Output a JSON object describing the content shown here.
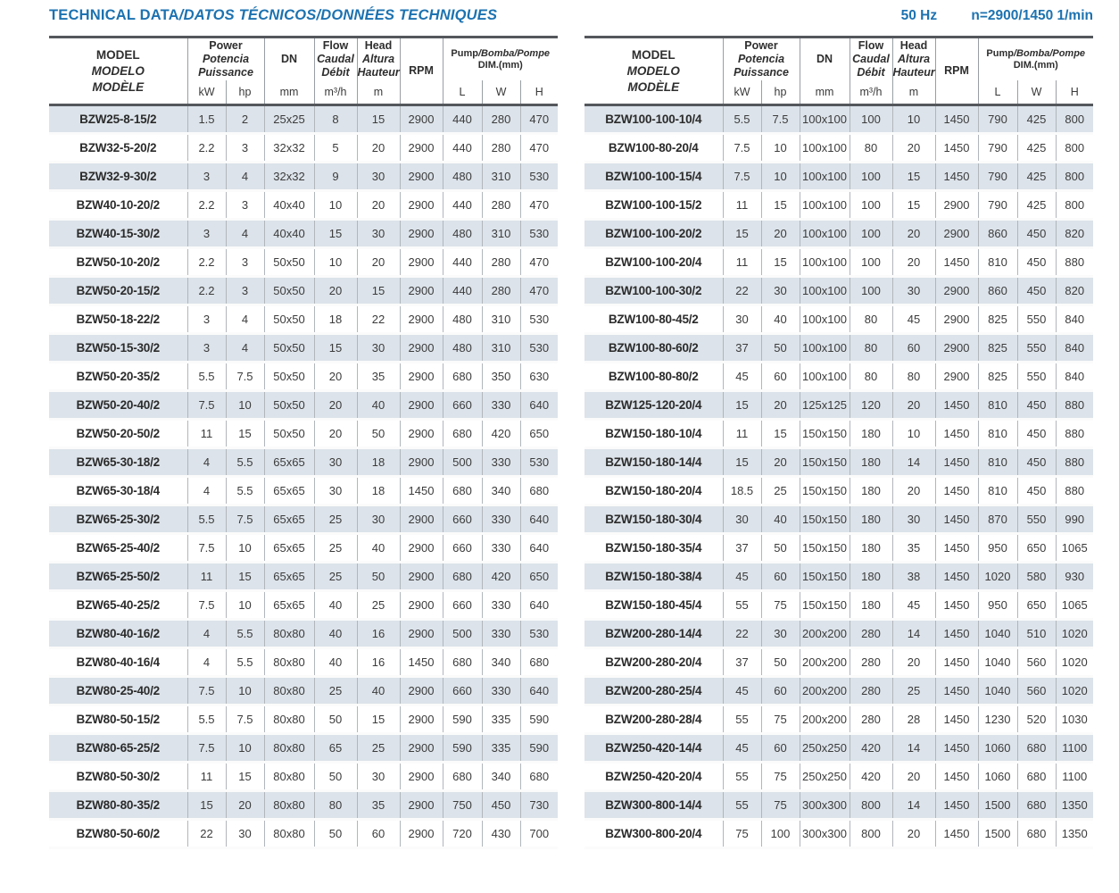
{
  "header": {
    "title_main": "TECHNICAL DATA",
    "title_rest": "/DATOS TÉCNICOS/DONNÉES TECHNIQUES",
    "frequency": "50 Hz",
    "speed": "n=2900/1450 1/min",
    "accent_color": "#1c72b0"
  },
  "thead": {
    "model": [
      "MODEL",
      "MODELO",
      "MODÈLE"
    ],
    "power": [
      "Power",
      "Potencia",
      "Puissance"
    ],
    "power_units": [
      "kW",
      "hp"
    ],
    "dn": "DN",
    "dn_unit": "mm",
    "flow": [
      "Flow",
      "Caudal",
      "Débit"
    ],
    "flow_unit": "m³/h",
    "head": [
      "Head",
      "Altura",
      "Hauteur"
    ],
    "head_unit": "m",
    "rpm": "RPM",
    "dim_title_main": "Pump",
    "dim_title_rest": "/Bomba/Pompe",
    "dim_sub": "DIM.(mm)",
    "dim_units": [
      "L",
      "W",
      "H"
    ]
  },
  "style": {
    "shaded_row_color": "#dce3ea",
    "border_dark_color": "#54585c"
  },
  "tables": {
    "left": {
      "rows": [
        [
          "BZW25-8-15/2",
          "1.5",
          "2",
          "25x25",
          "8",
          "15",
          "2900",
          "440",
          "280",
          "470"
        ],
        [
          "BZW32-5-20/2",
          "2.2",
          "3",
          "32x32",
          "5",
          "20",
          "2900",
          "440",
          "280",
          "470"
        ],
        [
          "BZW32-9-30/2",
          "3",
          "4",
          "32x32",
          "9",
          "30",
          "2900",
          "480",
          "310",
          "530"
        ],
        [
          "BZW40-10-20/2",
          "2.2",
          "3",
          "40x40",
          "10",
          "20",
          "2900",
          "440",
          "280",
          "470"
        ],
        [
          "BZW40-15-30/2",
          "3",
          "4",
          "40x40",
          "15",
          "30",
          "2900",
          "480",
          "310",
          "530"
        ],
        [
          "BZW50-10-20/2",
          "2.2",
          "3",
          "50x50",
          "10",
          "20",
          "2900",
          "440",
          "280",
          "470"
        ],
        [
          "BZW50-20-15/2",
          "2.2",
          "3",
          "50x50",
          "20",
          "15",
          "2900",
          "440",
          "280",
          "470"
        ],
        [
          "BZW50-18-22/2",
          "3",
          "4",
          "50x50",
          "18",
          "22",
          "2900",
          "480",
          "310",
          "530"
        ],
        [
          "BZW50-15-30/2",
          "3",
          "4",
          "50x50",
          "15",
          "30",
          "2900",
          "480",
          "310",
          "530"
        ],
        [
          "BZW50-20-35/2",
          "5.5",
          "7.5",
          "50x50",
          "20",
          "35",
          "2900",
          "680",
          "350",
          "630"
        ],
        [
          "BZW50-20-40/2",
          "7.5",
          "10",
          "50x50",
          "20",
          "40",
          "2900",
          "660",
          "330",
          "640"
        ],
        [
          "BZW50-20-50/2",
          "11",
          "15",
          "50x50",
          "20",
          "50",
          "2900",
          "680",
          "420",
          "650"
        ],
        [
          "BZW65-30-18/2",
          "4",
          "5.5",
          "65x65",
          "30",
          "18",
          "2900",
          "500",
          "330",
          "530"
        ],
        [
          "BZW65-30-18/4",
          "4",
          "5.5",
          "65x65",
          "30",
          "18",
          "1450",
          "680",
          "340",
          "680"
        ],
        [
          "BZW65-25-30/2",
          "5.5",
          "7.5",
          "65x65",
          "25",
          "30",
          "2900",
          "660",
          "330",
          "640"
        ],
        [
          "BZW65-25-40/2",
          "7.5",
          "10",
          "65x65",
          "25",
          "40",
          "2900",
          "660",
          "330",
          "640"
        ],
        [
          "BZW65-25-50/2",
          "11",
          "15",
          "65x65",
          "25",
          "50",
          "2900",
          "680",
          "420",
          "650"
        ],
        [
          "BZW65-40-25/2",
          "7.5",
          "10",
          "65x65",
          "40",
          "25",
          "2900",
          "660",
          "330",
          "640"
        ],
        [
          "BZW80-40-16/2",
          "4",
          "5.5",
          "80x80",
          "40",
          "16",
          "2900",
          "500",
          "330",
          "530"
        ],
        [
          "BZW80-40-16/4",
          "4",
          "5.5",
          "80x80",
          "40",
          "16",
          "1450",
          "680",
          "340",
          "680"
        ],
        [
          "BZW80-25-40/2",
          "7.5",
          "10",
          "80x80",
          "25",
          "40",
          "2900",
          "660",
          "330",
          "640"
        ],
        [
          "BZW80-50-15/2",
          "5.5",
          "7.5",
          "80x80",
          "50",
          "15",
          "2900",
          "590",
          "335",
          "590"
        ],
        [
          "BZW80-65-25/2",
          "7.5",
          "10",
          "80x80",
          "65",
          "25",
          "2900",
          "590",
          "335",
          "590"
        ],
        [
          "BZW80-50-30/2",
          "11",
          "15",
          "80x80",
          "50",
          "30",
          "2900",
          "680",
          "340",
          "680"
        ],
        [
          "BZW80-80-35/2",
          "15",
          "20",
          "80x80",
          "80",
          "35",
          "2900",
          "750",
          "450",
          "730"
        ],
        [
          "BZW80-50-60/2",
          "22",
          "30",
          "80x80",
          "50",
          "60",
          "2900",
          "720",
          "430",
          "700"
        ]
      ]
    },
    "right": {
      "rows": [
        [
          "BZW100-100-10/4",
          "5.5",
          "7.5",
          "100x100",
          "100",
          "10",
          "1450",
          "790",
          "425",
          "800"
        ],
        [
          "BZW100-80-20/4",
          "7.5",
          "10",
          "100x100",
          "80",
          "20",
          "1450",
          "790",
          "425",
          "800"
        ],
        [
          "BZW100-100-15/4",
          "7.5",
          "10",
          "100x100",
          "100",
          "15",
          "1450",
          "790",
          "425",
          "800"
        ],
        [
          "BZW100-100-15/2",
          "11",
          "15",
          "100x100",
          "100",
          "15",
          "2900",
          "790",
          "425",
          "800"
        ],
        [
          "BZW100-100-20/2",
          "15",
          "20",
          "100x100",
          "100",
          "20",
          "2900",
          "860",
          "450",
          "820"
        ],
        [
          "BZW100-100-20/4",
          "11",
          "15",
          "100x100",
          "100",
          "20",
          "1450",
          "810",
          "450",
          "880"
        ],
        [
          "BZW100-100-30/2",
          "22",
          "30",
          "100x100",
          "100",
          "30",
          "2900",
          "860",
          "450",
          "820"
        ],
        [
          "BZW100-80-45/2",
          "30",
          "40",
          "100x100",
          "80",
          "45",
          "2900",
          "825",
          "550",
          "840"
        ],
        [
          "BZW100-80-60/2",
          "37",
          "50",
          "100x100",
          "80",
          "60",
          "2900",
          "825",
          "550",
          "840"
        ],
        [
          "BZW100-80-80/2",
          "45",
          "60",
          "100x100",
          "80",
          "80",
          "2900",
          "825",
          "550",
          "840"
        ],
        [
          "BZW125-120-20/4",
          "15",
          "20",
          "125x125",
          "120",
          "20",
          "1450",
          "810",
          "450",
          "880"
        ],
        [
          "BZW150-180-10/4",
          "11",
          "15",
          "150x150",
          "180",
          "10",
          "1450",
          "810",
          "450",
          "880"
        ],
        [
          "BZW150-180-14/4",
          "15",
          "20",
          "150x150",
          "180",
          "14",
          "1450",
          "810",
          "450",
          "880"
        ],
        [
          "BZW150-180-20/4",
          "18.5",
          "25",
          "150x150",
          "180",
          "20",
          "1450",
          "810",
          "450",
          "880"
        ],
        [
          "BZW150-180-30/4",
          "30",
          "40",
          "150x150",
          "180",
          "30",
          "1450",
          "870",
          "550",
          "990"
        ],
        [
          "BZW150-180-35/4",
          "37",
          "50",
          "150x150",
          "180",
          "35",
          "1450",
          "950",
          "650",
          "1065"
        ],
        [
          "BZW150-180-38/4",
          "45",
          "60",
          "150x150",
          "180",
          "38",
          "1450",
          "1020",
          "580",
          "930"
        ],
        [
          "BZW150-180-45/4",
          "55",
          "75",
          "150x150",
          "180",
          "45",
          "1450",
          "950",
          "650",
          "1065"
        ],
        [
          "BZW200-280-14/4",
          "22",
          "30",
          "200x200",
          "280",
          "14",
          "1450",
          "1040",
          "510",
          "1020"
        ],
        [
          "BZW200-280-20/4",
          "37",
          "50",
          "200x200",
          "280",
          "20",
          "1450",
          "1040",
          "560",
          "1020"
        ],
        [
          "BZW200-280-25/4",
          "45",
          "60",
          "200x200",
          "280",
          "25",
          "1450",
          "1040",
          "560",
          "1020"
        ],
        [
          "BZW200-280-28/4",
          "55",
          "75",
          "200x200",
          "280",
          "28",
          "1450",
          "1230",
          "520",
          "1030"
        ],
        [
          "BZW250-420-14/4",
          "45",
          "60",
          "250x250",
          "420",
          "14",
          "1450",
          "1060",
          "680",
          "1100"
        ],
        [
          "BZW250-420-20/4",
          "55",
          "75",
          "250x250",
          "420",
          "20",
          "1450",
          "1060",
          "680",
          "1100"
        ],
        [
          "BZW300-800-14/4",
          "55",
          "75",
          "300x300",
          "800",
          "14",
          "1450",
          "1500",
          "680",
          "1350"
        ],
        [
          "BZW300-800-20/4",
          "75",
          "100",
          "300x300",
          "800",
          "20",
          "1450",
          "1500",
          "680",
          "1350"
        ]
      ]
    }
  }
}
